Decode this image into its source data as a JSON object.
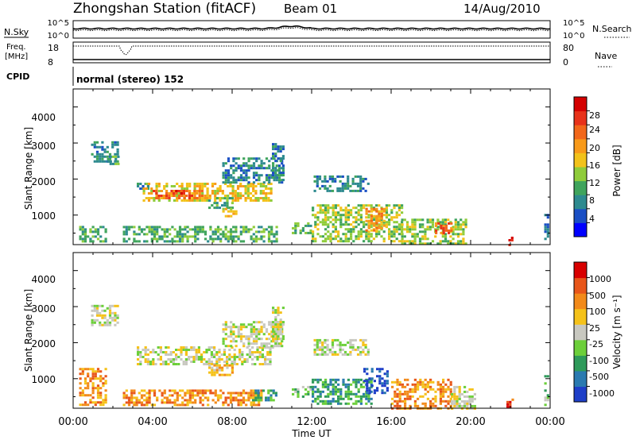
{
  "header": {
    "title": "Zhongshan Station (fitACF)",
    "beam": "Beam 01",
    "date": "14/Aug/2010"
  },
  "param_panels": {
    "nsky": {
      "label": "N.Sky",
      "ticks": [
        "10^5",
        "10^0"
      ]
    },
    "nsearch": {
      "label": "N.Search",
      "ticks": [
        "10^5",
        "10^0"
      ]
    },
    "freq": {
      "label_top": "Freq.",
      "label_unit": "[MHz]",
      "ticks": [
        "18",
        "8"
      ]
    },
    "nave": {
      "label": "Nave",
      "ticks": [
        "80",
        "0"
      ]
    },
    "cpid": {
      "label": "CPID",
      "mode_text": "normal (stereo) 152"
    }
  },
  "axes": {
    "time_ticks": [
      "00:00",
      "04:00",
      "08:00",
      "12:00",
      "16:00",
      "20:00",
      "00:00"
    ],
    "xlabel": "Time UT",
    "range_ticks": [
      "4000",
      "3000",
      "2000",
      "1000"
    ],
    "ylabel": "Slant Range [km]"
  },
  "colorbars": {
    "power": {
      "label": "Power [dB]",
      "ticks": [
        "28",
        "24",
        "20",
        "16",
        "12",
        "8",
        "4"
      ],
      "colors": [
        "#0000ff",
        "#1a4fc4",
        "#2d8a8f",
        "#3fa45c",
        "#8fcc3a",
        "#f2c21a",
        "#f89a1a",
        "#f2671a",
        "#e8321a",
        "#d40000"
      ]
    },
    "velocity": {
      "label": "Velocity [m s⁻¹]",
      "ticks": [
        "1000",
        "500",
        "100",
        "25",
        "-25",
        "-100",
        "-500",
        "-1000"
      ],
      "colors": [
        "#1e3fc8",
        "#2a7ab0",
        "#2e9a5a",
        "#6ccf3a",
        "#c8c8c0",
        "#f5c21a",
        "#f28a1a",
        "#e8561a",
        "#d80000"
      ]
    }
  },
  "chart_data": {
    "type": "heatmap",
    "x_range_hours": [
      0,
      24
    ],
    "y_range_km": [
      180,
      4500
    ],
    "power_regions": [
      {
        "t": [
          0.9,
          2.2
        ],
        "r": [
          2500,
          3050
        ],
        "level": 2
      },
      {
        "t": [
          1.7,
          2.3
        ],
        "r": [
          2450,
          2650
        ],
        "level": 3
      },
      {
        "t": [
          3.2,
          3.8
        ],
        "r": [
          1750,
          1900
        ],
        "level": 2
      },
      {
        "t": [
          3.5,
          10.0
        ],
        "r": [
          1400,
          1900
        ],
        "level": 5
      },
      {
        "t": [
          4.0,
          6.5
        ],
        "r": [
          1500,
          1700
        ],
        "level": 7
      },
      {
        "t": [
          5.0,
          5.7
        ],
        "r": [
          1550,
          1700
        ],
        "level": 8
      },
      {
        "t": [
          6.8,
          8.0
        ],
        "r": [
          1200,
          1500
        ],
        "level": 3
      },
      {
        "t": [
          7.5,
          8.2
        ],
        "r": [
          1000,
          1200
        ],
        "level": 5
      },
      {
        "t": [
          7.5,
          10.5
        ],
        "r": [
          1900,
          2600
        ],
        "level": 2
      },
      {
        "t": [
          10.0,
          10.6
        ],
        "r": [
          2000,
          3000
        ],
        "level": 2
      },
      {
        "t": [
          0.3,
          1.6
        ],
        "r": [
          300,
          700
        ],
        "level": 3
      },
      {
        "t": [
          2.5,
          10.2
        ],
        "r": [
          300,
          700
        ],
        "level": 3
      },
      {
        "t": [
          11.0,
          12.0
        ],
        "r": [
          500,
          800
        ],
        "level": 3
      },
      {
        "t": [
          12.1,
          14.8
        ],
        "r": [
          1650,
          2100
        ],
        "level": 2
      },
      {
        "t": [
          12.0,
          16.5
        ],
        "r": [
          300,
          1300
        ],
        "level": 4
      },
      {
        "t": [
          14.7,
          15.6
        ],
        "r": [
          600,
          1200
        ],
        "level": 6
      },
      {
        "t": [
          16.5,
          19.8
        ],
        "r": [
          200,
          900
        ],
        "level": 4
      },
      {
        "t": [
          18.2,
          19.0
        ],
        "r": [
          500,
          800
        ],
        "level": 7
      },
      {
        "t": [
          21.9,
          22.1
        ],
        "r": [
          190,
          400
        ],
        "level": 9
      },
      {
        "t": [
          23.7,
          23.9
        ],
        "r": [
          300,
          1100
        ],
        "level": 2
      }
    ],
    "velocity_regions": [
      {
        "t": [
          0.9,
          2.2
        ],
        "r": [
          2500,
          3050
        ],
        "level": 4
      },
      {
        "t": [
          3.2,
          10.0
        ],
        "r": [
          1400,
          1900
        ],
        "level": 4
      },
      {
        "t": [
          7.5,
          10.5
        ],
        "r": [
          1900,
          2600
        ],
        "level": 4
      },
      {
        "t": [
          10.0,
          10.6
        ],
        "r": [
          2000,
          3000
        ],
        "level": 4
      },
      {
        "t": [
          6.8,
          8.0
        ],
        "r": [
          1100,
          1400
        ],
        "level": 5
      },
      {
        "t": [
          0.3,
          1.6
        ],
        "r": [
          300,
          1300
        ],
        "level": 6
      },
      {
        "t": [
          2.5,
          9.5
        ],
        "r": [
          300,
          700
        ],
        "level": 6
      },
      {
        "t": [
          9.0,
          10.2
        ],
        "r": [
          400,
          700
        ],
        "level": 2
      },
      {
        "t": [
          11.0,
          12.0
        ],
        "r": [
          500,
          800
        ],
        "level": 3
      },
      {
        "t": [
          12.1,
          14.8
        ],
        "r": [
          1650,
          2100
        ],
        "level": 4
      },
      {
        "t": [
          12.0,
          15.0
        ],
        "r": [
          300,
          1000
        ],
        "level": 2
      },
      {
        "t": [
          14.6,
          15.8
        ],
        "r": [
          600,
          1300
        ],
        "level": 0
      },
      {
        "t": [
          16.0,
          19.0
        ],
        "r": [
          200,
          1000
        ],
        "level": 6
      },
      {
        "t": [
          19.0,
          20.2
        ],
        "r": [
          200,
          800
        ],
        "level": 4
      },
      {
        "t": [
          21.8,
          22.1
        ],
        "r": [
          190,
          450
        ],
        "level": 7
      },
      {
        "t": [
          23.7,
          23.9
        ],
        "r": [
          300,
          1100
        ],
        "level": 3
      }
    ]
  }
}
